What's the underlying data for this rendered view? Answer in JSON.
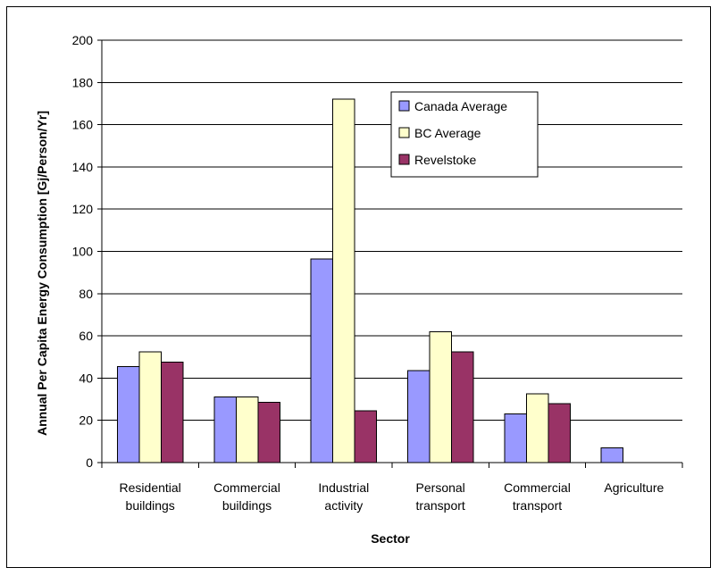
{
  "chart_data": {
    "type": "bar",
    "title": "",
    "xlabel": "Sector",
    "ylabel": "Annual Per Capita Energy Consumption [Gj/Person/Yr]",
    "ylim": [
      0,
      200
    ],
    "yticks": [
      0,
      20,
      40,
      60,
      80,
      100,
      120,
      140,
      160,
      180,
      200
    ],
    "grid": true,
    "legend_position": "top-right",
    "categories": [
      [
        "Residential",
        "buildings"
      ],
      [
        "Commercial",
        "buildings"
      ],
      [
        "Industrial",
        "activity"
      ],
      [
        "Personal",
        "transport"
      ],
      [
        "Commercial",
        "transport"
      ],
      [
        "Agriculture"
      ]
    ],
    "series": [
      {
        "name": "Canada Average",
        "color": "#9999ff",
        "values": [
          45.5,
          31,
          96.5,
          43.5,
          23,
          7
        ]
      },
      {
        "name": "BC Average",
        "color": "#ffffcc",
        "values": [
          52.5,
          31,
          172,
          62,
          32.5,
          0
        ]
      },
      {
        "name": "Revelstoke",
        "color": "#993366",
        "values": [
          47.5,
          28.5,
          24.5,
          52.5,
          28,
          0
        ]
      }
    ]
  }
}
